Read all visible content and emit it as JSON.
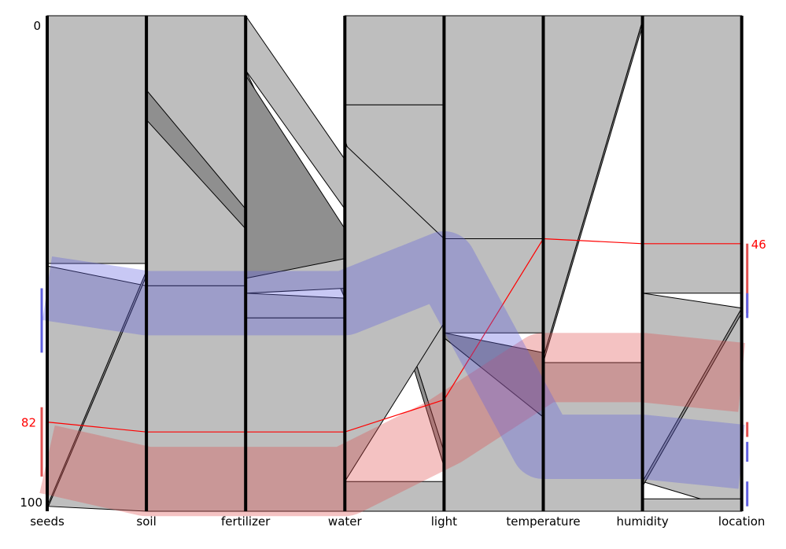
{
  "chart_data": {
    "type": "parallel-sets",
    "axes": [
      "seeds",
      "soil",
      "fertilizer",
      "water",
      "light",
      "temperature",
      "humidity",
      "location"
    ],
    "y_range": [
      0,
      100
    ],
    "ticks": [
      {
        "label": "0",
        "value": 0
      },
      {
        "label": "100",
        "value": 100
      }
    ],
    "colors": {
      "ribbon_fill": "#bebebe",
      "ribbon_dark": "#8f8f8f",
      "highlight_red": "#e05050",
      "highlight_blue": "#6060e0",
      "line_red": "#ff0000"
    },
    "ribbons": [
      {
        "from": 0,
        "a": [
          0,
          50
        ],
        "b": [
          0,
          50
        ],
        "shade": "light"
      },
      {
        "from": 0,
        "a": [
          50.5,
          99
        ],
        "b": [
          54.5,
          100
        ],
        "shade": "light"
      },
      {
        "from": 0,
        "a": [
          99,
          99.6
        ],
        "b": [
          51.5,
          52.5
        ],
        "shade": "dark"
      },
      {
        "from": 1,
        "a": [
          0,
          15
        ],
        "b": [
          0,
          53
        ],
        "shade": "light"
      },
      {
        "from": 1,
        "a": [
          15,
          21
        ],
        "b": [
          39,
          45
        ],
        "shade": "dark"
      },
      {
        "from": 1,
        "a": [
          21,
          54.5
        ],
        "b": [
          43,
          54.5
        ],
        "shade": "light"
      },
      {
        "from": 1,
        "a": [
          54.5,
          100
        ],
        "b": [
          54.5,
          100
        ],
        "shade": "light"
      },
      {
        "from": 2,
        "a": [
          0,
          11
        ],
        "b": [
          29,
          39
        ],
        "shade": "light"
      },
      {
        "from": 2,
        "a": [
          11,
          12
        ],
        "b": [
          53,
          57
        ],
        "shade": "dark"
      },
      {
        "from": 2,
        "a": [
          12,
          53
        ],
        "b": [
          43,
          54
        ],
        "shade": "dark"
      },
      {
        "from": 2,
        "a": [
          53,
          56
        ],
        "b": [
          49,
          55
        ],
        "shade": "light"
      },
      {
        "from": 2,
        "a": [
          56,
          61
        ],
        "b": [
          57,
          61
        ],
        "shade": "light"
      },
      {
        "from": 2,
        "a": [
          61,
          100
        ],
        "b": [
          61,
          100
        ],
        "shade": "light"
      },
      {
        "from": 3,
        "a": [
          0,
          18
        ],
        "b": [
          0,
          18
        ],
        "shade": "light"
      },
      {
        "from": 3,
        "a": [
          18,
          25
        ],
        "b": [
          18,
          88
        ],
        "shade": "light"
      },
      {
        "from": 3,
        "a": [
          25,
          26
        ],
        "b": [
          88,
          91
        ],
        "shade": "dark"
      },
      {
        "from": 3,
        "a": [
          26,
          94
        ],
        "b": [
          45,
          62
        ],
        "shade": "light"
      },
      {
        "from": 3,
        "a": [
          94,
          100
        ],
        "b": [
          94,
          100
        ],
        "shade": "light"
      },
      {
        "from": 4,
        "a": [
          0,
          45
        ],
        "b": [
          0,
          45
        ],
        "shade": "light"
      },
      {
        "from": 4,
        "a": [
          45,
          64
        ],
        "b": [
          45,
          64
        ],
        "shade": "light"
      },
      {
        "from": 4,
        "a": [
          64,
          65
        ],
        "b": [
          68,
          81
        ],
        "shade": "dark"
      },
      {
        "from": 4,
        "a": [
          65,
          100
        ],
        "b": [
          81,
          100
        ],
        "shade": "light"
      },
      {
        "from": 5,
        "a": [
          0,
          69
        ],
        "b": [
          0,
          1
        ],
        "shade": "light"
      },
      {
        "from": 5,
        "a": [
          69,
          70
        ],
        "b": [
          1,
          2
        ],
        "shade": "dark"
      },
      {
        "from": 5,
        "a": [
          70,
          100
        ],
        "b": [
          70,
          100
        ],
        "shade": "light"
      },
      {
        "from": 6,
        "a": [
          0,
          56
        ],
        "b": [
          0,
          56
        ],
        "shade": "light"
      },
      {
        "from": 6,
        "a": [
          56,
          94
        ],
        "b": [
          59,
          100
        ],
        "shade": "light"
      },
      {
        "from": 6,
        "a": [
          94,
          95
        ],
        "b": [
          59,
          60
        ],
        "shade": "dark"
      },
      {
        "from": 6,
        "a": [
          97.5,
          100
        ],
        "b": [
          97.5,
          100
        ],
        "shade": "light"
      }
    ],
    "highlights": [
      {
        "color": "red",
        "values": [
          89.5,
          94,
          94,
          94,
          84,
          71,
          71,
          73
        ],
        "width": 14,
        "line": [
          82,
          84,
          84,
          84,
          77.5,
          45,
          46,
          46
        ],
        "start_label": "82",
        "end_label": "46",
        "start_bar": [
          79,
          93
        ],
        "end_bars": [
          [
            46,
            60
          ],
          [
            82,
            85
          ]
        ]
      },
      {
        "color": "blue",
        "values": [
          55,
          58,
          58,
          58,
          50,
          87,
          87,
          89
        ],
        "width": 13,
        "start_bar": [
          55,
          68
        ],
        "end_bars": [
          [
            56,
            61
          ],
          [
            86,
            90
          ],
          [
            94,
            99
          ]
        ]
      }
    ]
  }
}
